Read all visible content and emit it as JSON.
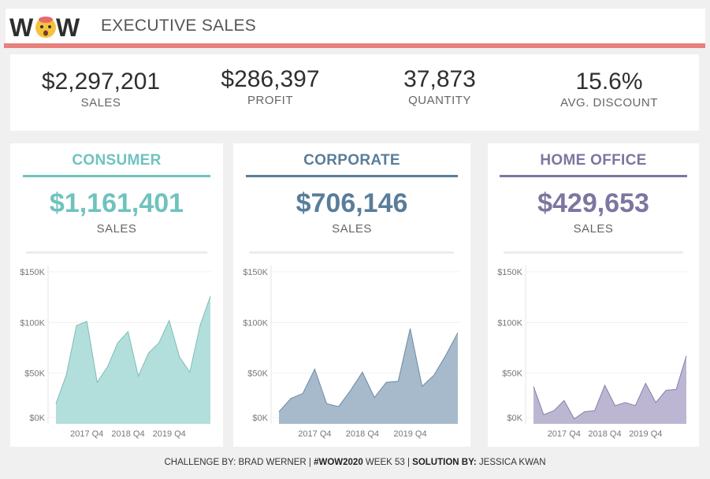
{
  "header": {
    "title": "EXECUTIVE SALES",
    "logo_text": "W W"
  },
  "kpis": [
    {
      "value": "$2,297,201",
      "label": "SALES"
    },
    {
      "value": "$286,397",
      "label": "PROFIT"
    },
    {
      "value": "37,873",
      "label": "QUANTITY"
    },
    {
      "value": "15.6%",
      "label": "AVG. DISCOUNT"
    }
  ],
  "segments": [
    {
      "name": "CONSUMER",
      "sales": "$1,161,401",
      "label": "SALES",
      "color": "#6fc3bd",
      "fill": "#b2dfdb",
      "line": "#7fbcb6"
    },
    {
      "name": "CORPORATE",
      "sales": "$706,146",
      "label": "SALES",
      "color": "#5a7d99",
      "fill": "#a6bacb",
      "line": "#6c8aa4"
    },
    {
      "name": "HOME OFFICE",
      "sales": "$429,653",
      "label": "SALES",
      "color": "#7c76a0",
      "fill": "#bcb6d2",
      "line": "#8580a8"
    }
  ],
  "footer": {
    "p1": "CHALLENGE BY: BRAD WERNER | ",
    "p2": "#WOW2020",
    "p3": " WEEK 53 | ",
    "p4": "SOLUTION BY:",
    "p5": " JESSICA KWAN"
  },
  "chart_data": [
    {
      "type": "area",
      "title": "",
      "yticks": [
        "$150K",
        "$100K",
        "$50K",
        "$0K"
      ],
      "xticks": [
        "2017 Q4",
        "2018 Q4",
        "2019 Q4"
      ],
      "ylim": [
        0,
        150000
      ],
      "series": [
        {
          "values": [
            20000,
            48000,
            97000,
            101000,
            41000,
            56000,
            80000,
            91000,
            47000,
            70000,
            80000,
            102000,
            66000,
            51000,
            97000,
            126000
          ]
        }
      ]
    },
    {
      "type": "area",
      "title": "",
      "yticks": [
        "$150K",
        "$100K",
        "$50K",
        "$0K"
      ],
      "xticks": [
        "2017 Q4",
        "2018 Q4",
        "2019 Q4"
      ],
      "ylim": [
        0,
        150000
      ],
      "series": [
        {
          "values": [
            12000,
            25000,
            30000,
            54000,
            20000,
            17000,
            33000,
            51000,
            26000,
            41000,
            42000,
            94000,
            37000,
            48000,
            68000,
            90000
          ]
        }
      ]
    },
    {
      "type": "area",
      "title": "",
      "yticks": [
        "$150K",
        "$100K",
        "$50K",
        "$0K"
      ],
      "xticks": [
        "2017 Q4",
        "2018 Q4",
        "2019 Q4"
      ],
      "ylim": [
        0,
        150000
      ],
      "series": [
        {
          "values": [
            37000,
            9000,
            13000,
            23000,
            5000,
            12000,
            13000,
            38000,
            18000,
            21000,
            18000,
            40000,
            21000,
            33000,
            34000,
            67000
          ]
        }
      ]
    }
  ]
}
